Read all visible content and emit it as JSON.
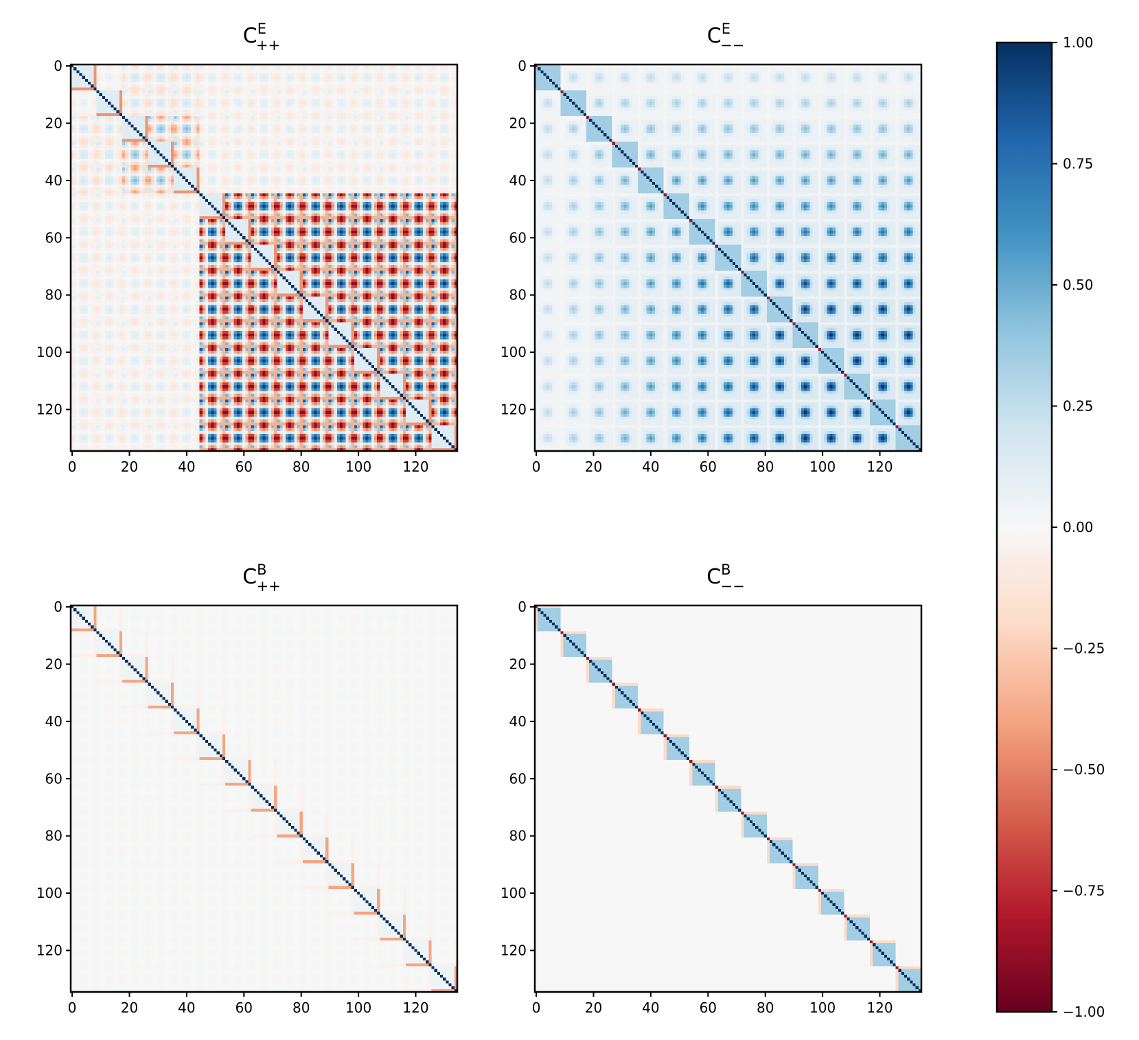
{
  "chart_data": {
    "type": "heatmap",
    "matrix_size": 135,
    "block_size": 9,
    "panels": [
      {
        "id": "e_pp",
        "title": {
          "base": "C",
          "sup": "E",
          "sub": "++"
        },
        "pattern": "e_pp",
        "xticks": [
          0,
          20,
          40,
          60,
          80,
          100,
          120
        ],
        "yticks": [
          0,
          20,
          40,
          60,
          80,
          100,
          120
        ],
        "xtick_labels": [
          "0",
          "20",
          "40",
          "60",
          "80",
          "100",
          "120"
        ],
        "ytick_labels": [
          "0",
          "20",
          "40",
          "60",
          "80",
          "100",
          "120"
        ]
      },
      {
        "id": "e_mm",
        "title": {
          "base": "C",
          "sup": "E",
          "sub": "−−"
        },
        "pattern": "e_mm",
        "xticks": [
          0,
          20,
          40,
          60,
          80,
          100,
          120
        ],
        "yticks": [
          0,
          20,
          40,
          60,
          80,
          100,
          120
        ],
        "xtick_labels": [
          "0",
          "20",
          "40",
          "60",
          "80",
          "100",
          "120"
        ],
        "ytick_labels": [
          "0",
          "20",
          "40",
          "60",
          "80",
          "100",
          "120"
        ]
      },
      {
        "id": "b_pp",
        "title": {
          "base": "C",
          "sup": "B",
          "sub": "++"
        },
        "pattern": "b_pp",
        "xticks": [
          0,
          20,
          40,
          60,
          80,
          100,
          120
        ],
        "yticks": [
          0,
          20,
          40,
          60,
          80,
          100,
          120
        ],
        "xtick_labels": [
          "0",
          "20",
          "40",
          "60",
          "80",
          "100",
          "120"
        ],
        "ytick_labels": [
          "0",
          "20",
          "40",
          "60",
          "80",
          "100",
          "120"
        ]
      },
      {
        "id": "b_mm",
        "title": {
          "base": "C",
          "sup": "B",
          "sub": "−−"
        },
        "pattern": "b_mm",
        "xticks": [
          0,
          20,
          40,
          60,
          80,
          100,
          120
        ],
        "yticks": [
          0,
          20,
          40,
          60,
          80,
          100,
          120
        ],
        "xtick_labels": [
          "0",
          "20",
          "40",
          "60",
          "80",
          "100",
          "120"
        ],
        "ytick_labels": [
          "0",
          "20",
          "40",
          "60",
          "80",
          "100",
          "120"
        ]
      }
    ],
    "colorbar": {
      "colormap": "RdBu",
      "range": [
        -1.0,
        1.0
      ],
      "ticks": [
        1.0,
        0.75,
        0.5,
        0.25,
        0.0,
        -0.25,
        -0.5,
        -0.75,
        -1.0
      ],
      "tick_labels": [
        "1.00",
        "0.75",
        "0.50",
        "0.25",
        "0.00",
        "−0.25",
        "−0.50",
        "−0.75",
        "−1.00"
      ]
    }
  }
}
